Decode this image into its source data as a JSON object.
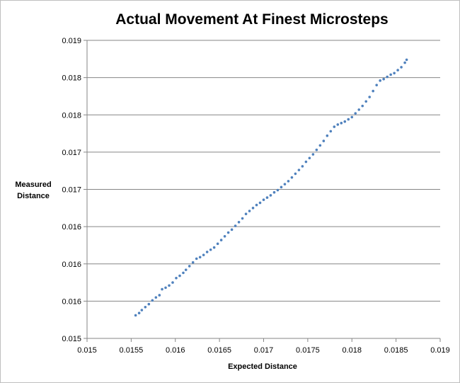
{
  "chart_data": {
    "type": "scatter",
    "title": "Actual Movement At Finest Microsteps",
    "xlabel": "Expected Distance",
    "ylabel_lines": [
      "Measured",
      "Distance"
    ],
    "xlim": [
      0.015,
      0.019
    ],
    "ylim": [
      0.015,
      0.019
    ],
    "x_ticks": [
      "0.015",
      "0.0155",
      "0.016",
      "0.0165",
      "0.017",
      "0.0175",
      "0.018",
      "0.0185",
      "0.019"
    ],
    "y_ticks": [
      "0.015",
      "0.016",
      "0.016",
      "0.016",
      "0.017",
      "0.017",
      "0.018",
      "0.018",
      "0.019"
    ],
    "grid": "horizontal",
    "marker_color": "#4f81bd",
    "series": [
      {
        "x": [
          0.01555,
          0.01559,
          0.01562,
          0.01566,
          0.0157,
          0.01574,
          0.01578,
          0.01582,
          0.01585,
          0.01589,
          0.01593,
          0.01597,
          0.01601,
          0.01605,
          0.01609,
          0.01612,
          0.01616,
          0.0162,
          0.01624,
          0.01628,
          0.01632,
          0.01636,
          0.0164,
          0.01644,
          0.01648,
          0.01652,
          0.01656,
          0.0166,
          0.01664,
          0.01668,
          0.01672,
          0.01676,
          0.0168,
          0.01684,
          0.01688,
          0.01692,
          0.01696,
          0.017,
          0.01704,
          0.01708,
          0.01712,
          0.01716,
          0.0172,
          0.01724,
          0.01728,
          0.01732,
          0.01736,
          0.0174,
          0.01744,
          0.01748,
          0.01752,
          0.01756,
          0.0176,
          0.01764,
          0.01768,
          0.01772,
          0.01776,
          0.0178,
          0.01784,
          0.01788,
          0.01792,
          0.01796,
          0.018,
          0.01804,
          0.01808,
          0.01812,
          0.01816,
          0.0182,
          0.01824,
          0.01828,
          0.01832,
          0.01836,
          0.0184,
          0.01844,
          0.01848,
          0.01852,
          0.01856,
          0.0186,
          0.01862
        ],
        "y": [
          0.01531,
          0.01534,
          0.01538,
          0.01542,
          0.01546,
          0.01551,
          0.01555,
          0.01558,
          0.01566,
          0.01568,
          0.01571,
          0.01575,
          0.01581,
          0.01584,
          0.01588,
          0.01592,
          0.01597,
          0.01602,
          0.01607,
          0.01609,
          0.01612,
          0.01616,
          0.01619,
          0.01622,
          0.01627,
          0.01632,
          0.01637,
          0.01642,
          0.01646,
          0.01651,
          0.01656,
          0.01661,
          0.01667,
          0.01671,
          0.01675,
          0.01679,
          0.01682,
          0.01686,
          0.01689,
          0.01692,
          0.01696,
          0.01699,
          0.01703,
          0.01707,
          0.01711,
          0.01716,
          0.01721,
          0.01726,
          0.01731,
          0.01737,
          0.01742,
          0.01747,
          0.01753,
          0.01759,
          0.01765,
          0.01772,
          0.01778,
          0.01784,
          0.01787,
          0.01789,
          0.01791,
          0.01794,
          0.01797,
          0.01802,
          0.01807,
          0.01812,
          0.01818,
          0.01824,
          0.01832,
          0.0184,
          0.01846,
          0.01848,
          0.01851,
          0.01854,
          0.01856,
          0.0186,
          0.01864,
          0.0187,
          0.01874
        ]
      }
    ]
  }
}
